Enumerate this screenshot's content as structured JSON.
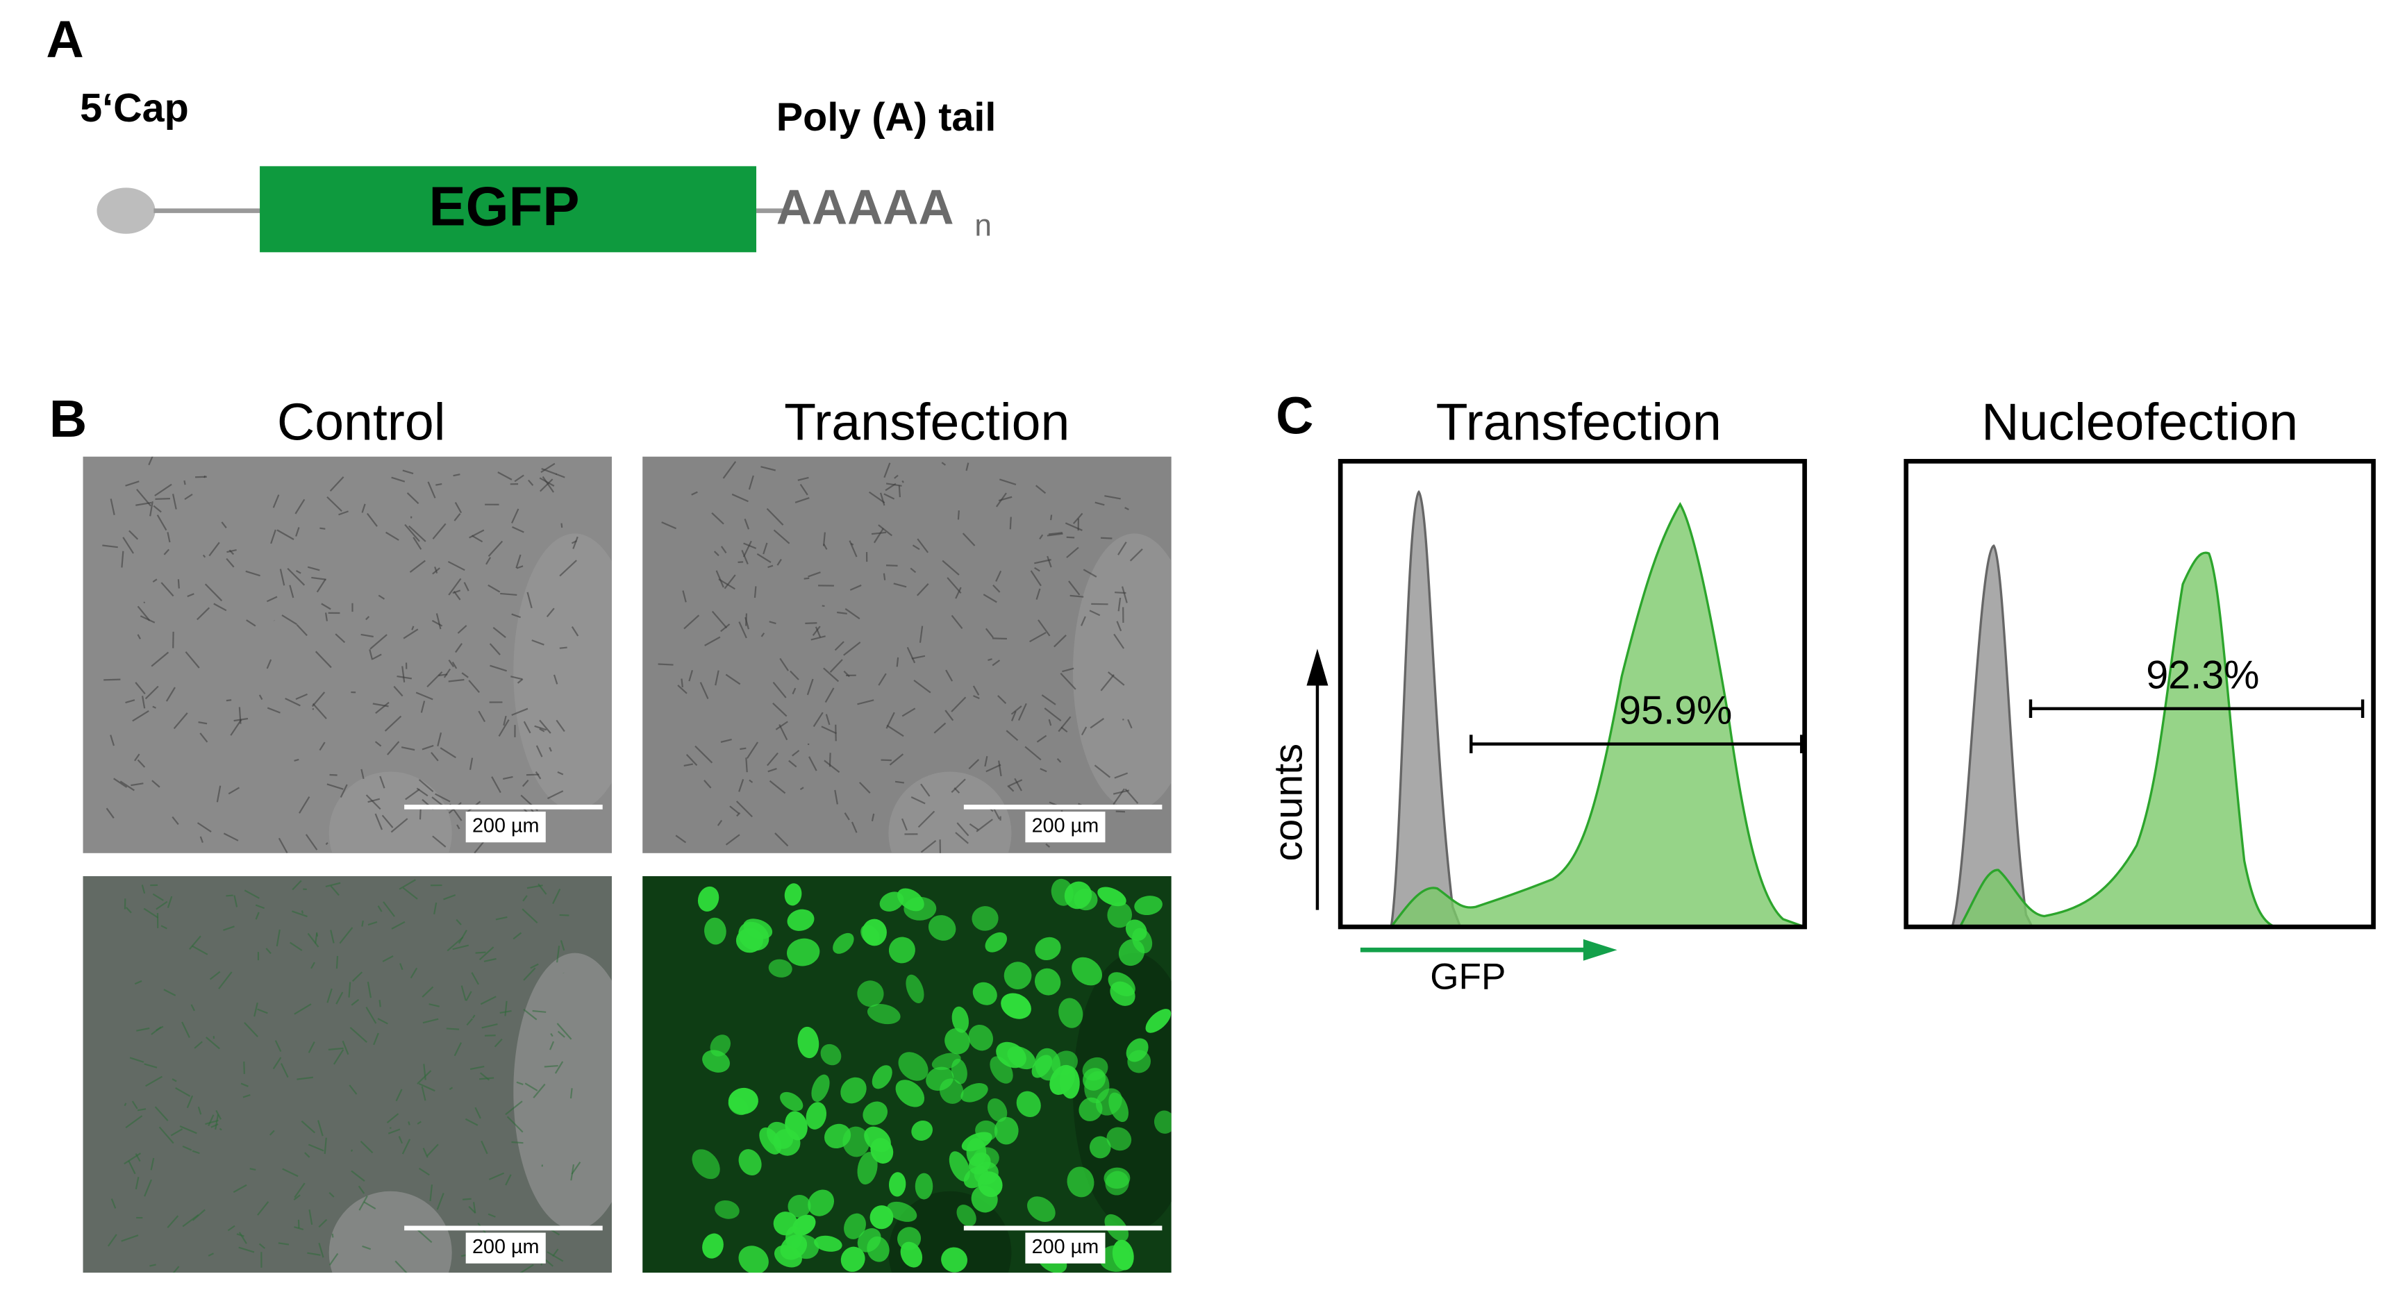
{
  "panel_a": {
    "label": "A",
    "cap": "5‘Cap",
    "tail": "Poly (A) tail",
    "gene": "EGFP",
    "polya": "AAAAA",
    "polya_sub": "n"
  },
  "panel_b": {
    "label": "B",
    "columns": [
      "Control",
      "Transfection"
    ],
    "scale_bars": [
      "200 µm",
      "200 µm",
      "200 µm",
      "200 µm"
    ]
  },
  "panel_c": {
    "label": "C",
    "plots": [
      {
        "title": "Transfection",
        "percent": "95.9%"
      },
      {
        "title": "Nucleofection",
        "percent": "92.3%"
      }
    ],
    "y_label": "counts",
    "x_label": "GFP"
  }
}
